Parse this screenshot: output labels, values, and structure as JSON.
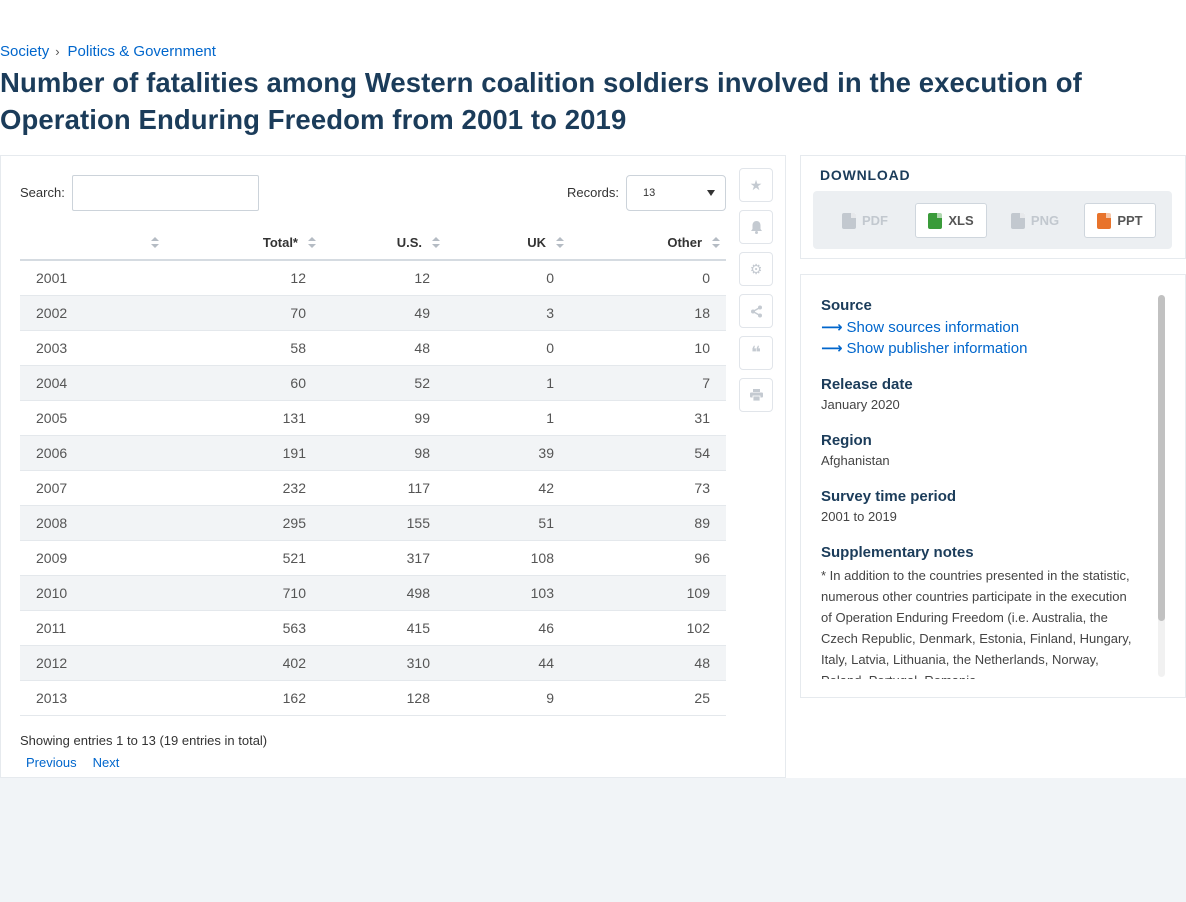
{
  "breadcrumb": {
    "items": [
      "Society",
      "Politics & Government"
    ],
    "separator": "›"
  },
  "title": "Number of fatalities among Western coalition soldiers involved in the execution of Operation Enduring Freedom from 2001 to 2019",
  "search": {
    "label": "Search:",
    "value": "",
    "placeholder": ""
  },
  "records": {
    "label": "Records:",
    "selected": "13"
  },
  "table": {
    "headers": [
      "",
      "Total*",
      "U.S.",
      "UK",
      "Other"
    ],
    "rows": [
      [
        "2001",
        "12",
        "12",
        "0",
        "0"
      ],
      [
        "2002",
        "70",
        "49",
        "3",
        "18"
      ],
      [
        "2003",
        "58",
        "48",
        "0",
        "10"
      ],
      [
        "2004",
        "60",
        "52",
        "1",
        "7"
      ],
      [
        "2005",
        "131",
        "99",
        "1",
        "31"
      ],
      [
        "2006",
        "191",
        "98",
        "39",
        "54"
      ],
      [
        "2007",
        "232",
        "117",
        "42",
        "73"
      ],
      [
        "2008",
        "295",
        "155",
        "51",
        "89"
      ],
      [
        "2009",
        "521",
        "317",
        "108",
        "96"
      ],
      [
        "2010",
        "710",
        "498",
        "103",
        "109"
      ],
      [
        "2011",
        "563",
        "415",
        "46",
        "102"
      ],
      [
        "2012",
        "402",
        "310",
        "44",
        "48"
      ],
      [
        "2013",
        "162",
        "128",
        "9",
        "25"
      ]
    ]
  },
  "pagination": {
    "showing": "Showing entries 1 to 13 (19 entries in total)",
    "previous": "Previous",
    "next": "Next"
  },
  "toolbar": {
    "icons": [
      "star-icon",
      "bell-icon",
      "gear-icon",
      "share-icon",
      "quote-icon",
      "print-icon"
    ]
  },
  "download": {
    "title": "DOWNLOAD",
    "buttons": [
      {
        "label": "PDF",
        "enabled": false,
        "color": "#c2c8cf"
      },
      {
        "label": "XLS",
        "enabled": true,
        "color": "#3a9b3a"
      },
      {
        "label": "PNG",
        "enabled": false,
        "color": "#c2c8cf"
      },
      {
        "label": "PPT",
        "enabled": true,
        "color": "#e8732b"
      }
    ]
  },
  "info": {
    "source_heading": "Source",
    "show_sources": "Show sources information",
    "show_publisher": "Show publisher information",
    "release_heading": "Release date",
    "release_value": "January 2020",
    "region_heading": "Region",
    "region_value": "Afghanistan",
    "period_heading": "Survey time period",
    "period_value": "2001 to 2019",
    "notes_heading": "Supplementary notes",
    "notes_value": "* In addition to the countries presented in the statistic, numerous other countries participate in the execution of Operation Enduring Freedom (i.e. Australia, the Czech Republic, Denmark, Estonia, Finland, Hungary, Italy, Latvia, Lithuania, the Netherlands, Norway, Poland, Portugal, Romania"
  },
  "colors": {
    "link": "#0066cc",
    "heading": "#1b3c5a",
    "row_alt": "#f2f4f6"
  }
}
